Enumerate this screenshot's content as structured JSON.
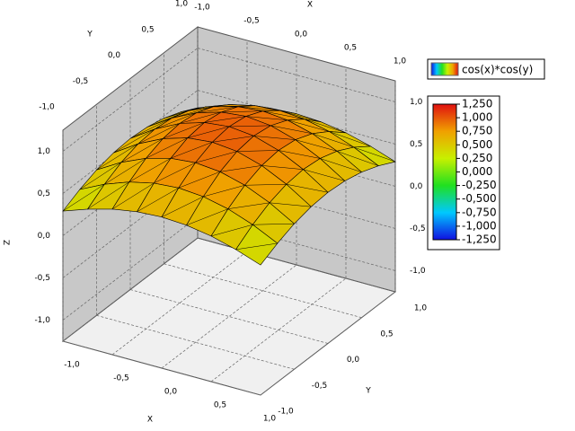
{
  "chart_data": {
    "type": "surface3d",
    "x_label": "X",
    "y_label": "Y",
    "z_label": "Z",
    "legend": "cos(x)*cos(y)",
    "x": [
      -1,
      -0.75,
      -0.5,
      -0.25,
      0,
      0.25,
      0.5,
      0.75,
      1
    ],
    "y": [
      -1,
      -0.75,
      -0.5,
      -0.25,
      0,
      0.25,
      0.5,
      0.75,
      1
    ],
    "z": [
      [
        0.292,
        0.395,
        0.474,
        0.523,
        0.54,
        0.523,
        0.474,
        0.395,
        0.292
      ],
      [
        0.395,
        0.536,
        0.643,
        0.709,
        0.732,
        0.709,
        0.643,
        0.536,
        0.395
      ],
      [
        0.474,
        0.643,
        0.771,
        0.851,
        0.878,
        0.851,
        0.771,
        0.643,
        0.474
      ],
      [
        0.523,
        0.709,
        0.851,
        0.939,
        0.969,
        0.939,
        0.851,
        0.709,
        0.523
      ],
      [
        0.54,
        0.732,
        0.878,
        0.969,
        1.0,
        0.969,
        0.878,
        0.732,
        0.54
      ],
      [
        0.523,
        0.709,
        0.851,
        0.939,
        0.969,
        0.939,
        0.851,
        0.709,
        0.523
      ],
      [
        0.474,
        0.643,
        0.771,
        0.851,
        0.878,
        0.851,
        0.771,
        0.643,
        0.474
      ],
      [
        0.395,
        0.536,
        0.643,
        0.709,
        0.732,
        0.709,
        0.643,
        0.536,
        0.395
      ],
      [
        0.292,
        0.395,
        0.474,
        0.523,
        0.54,
        0.523,
        0.474,
        0.395,
        0.292
      ]
    ],
    "xlim": [
      -1,
      1
    ],
    "ylim": [
      -1,
      1
    ],
    "zlim": [
      -1.25,
      1.25
    ],
    "xticks": [
      {
        "value": -1,
        "label": "-1,0"
      },
      {
        "value": -0.5,
        "label": "-0,5"
      },
      {
        "value": 0,
        "label": "0,0"
      },
      {
        "value": 0.5,
        "label": "0,5"
      },
      {
        "value": 1,
        "label": "1,0"
      }
    ],
    "yticks": [
      {
        "value": -1,
        "label": "-1,0"
      },
      {
        "value": -0.5,
        "label": "-0,5"
      },
      {
        "value": 0,
        "label": "0,0"
      },
      {
        "value": 0.5,
        "label": "0,5"
      },
      {
        "value": 1,
        "label": "1,0"
      }
    ],
    "zticks": [
      {
        "value": -1,
        "label": "-1,0"
      },
      {
        "value": -0.5,
        "label": "-0,5"
      },
      {
        "value": 0,
        "label": "0,0"
      },
      {
        "value": 0.5,
        "label": "0,5"
      },
      {
        "value": 1,
        "label": "1,0"
      }
    ],
    "colormap": [
      "#1010e0",
      "#00c8ff",
      "#20e020",
      "#c8f000",
      "#f0a000",
      "#e01010"
    ],
    "colorbar_ticks": [
      {
        "value": 1.25,
        "label": "1,250"
      },
      {
        "value": 1,
        "label": "1,000"
      },
      {
        "value": 0.75,
        "label": "0,750"
      },
      {
        "value": 0.5,
        "label": "0,500"
      },
      {
        "value": 0.25,
        "label": "0,250"
      },
      {
        "value": 0,
        "label": "0,000"
      },
      {
        "value": -0.25,
        "label": "-0,250"
      },
      {
        "value": -0.5,
        "label": "-0,500"
      },
      {
        "value": -0.75,
        "label": "-0,750"
      },
      {
        "value": -1,
        "label": "-1,000"
      },
      {
        "value": -1.25,
        "label": "-1,250"
      }
    ],
    "grid": true
  }
}
